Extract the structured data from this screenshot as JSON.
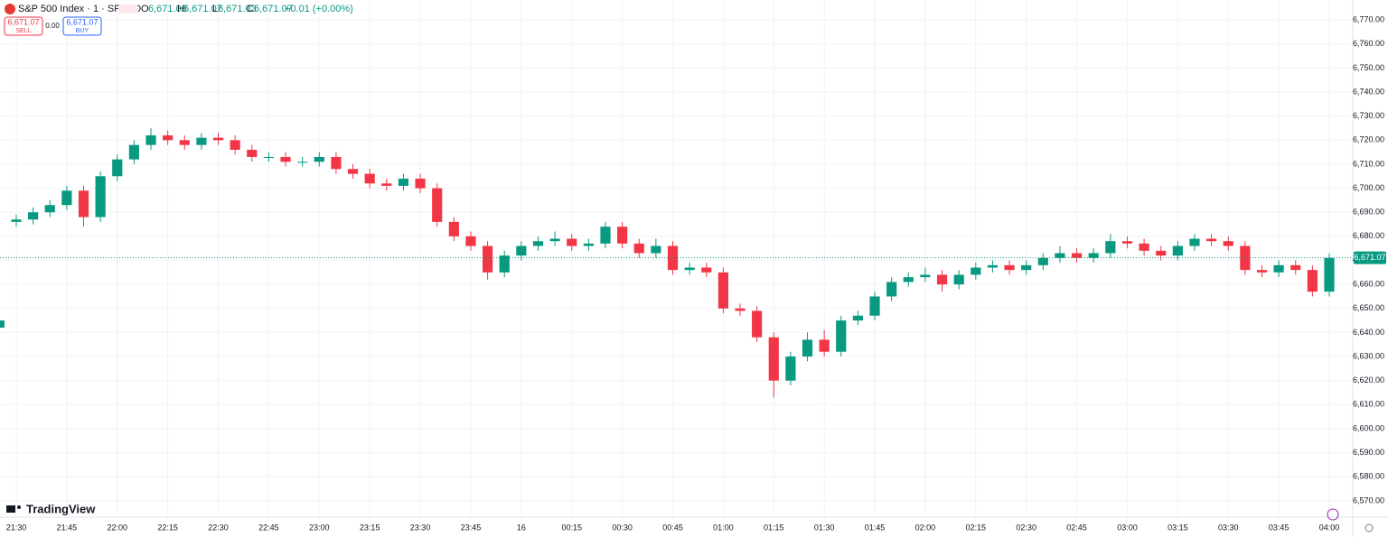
{
  "header": {
    "symbol": "S&P 500 Index · 1 · SPCFD",
    "ohlc": [
      {
        "key": "O",
        "value": "6,671.03"
      },
      {
        "key": "H",
        "value": "6,671.07"
      },
      {
        "key": "L",
        "value": "6,671.03"
      },
      {
        "key": "C",
        "value": "6,671.07"
      }
    ],
    "change": "+0.01 (+0.00%)"
  },
  "trade": {
    "sell_price": "6,671.07",
    "sell_label": "SELL",
    "spread": "0.00",
    "buy_price": "6,671.07",
    "buy_label": "BUY"
  },
  "brand": "TradingView",
  "chart_data": {
    "type": "candlestick",
    "up_color": "#089981",
    "down_color": "#f23645",
    "grid": true,
    "last_price": {
      "value": 6671.07,
      "label": "6,671.07"
    },
    "x": [
      "21:25",
      "21:30",
      "21:35",
      "21:40",
      "21:45",
      "21:50",
      "21:55",
      "22:00",
      "22:05",
      "22:10",
      "22:15",
      "22:20",
      "22:25",
      "22:30",
      "22:35",
      "22:40",
      "22:45",
      "22:50",
      "22:55",
      "23:00",
      "23:05",
      "23:10",
      "23:15",
      "23:20",
      "23:25",
      "23:30",
      "23:35",
      "23:40",
      "23:45",
      "23:50",
      "23:55",
      "00:00",
      "00:05",
      "00:10",
      "00:15",
      "00:20",
      "00:25",
      "00:30",
      "00:35",
      "00:40",
      "00:45",
      "00:50",
      "00:55",
      "01:00",
      "01:05",
      "01:10",
      "01:15",
      "01:20",
      "01:25",
      "01:30",
      "01:35",
      "01:40",
      "01:45",
      "01:50",
      "01:55",
      "02:00",
      "02:05",
      "02:10",
      "02:15",
      "02:20",
      "02:25",
      "02:30",
      "02:35",
      "02:40",
      "02:45",
      "02:50",
      "02:55",
      "03:00",
      "03:05",
      "03:10",
      "03:15",
      "03:20",
      "03:25",
      "03:30",
      "03:35",
      "03:40",
      "03:45",
      "03:50",
      "03:55",
      "04:00"
    ],
    "open": [
      6642,
      6686,
      6687,
      6690,
      6693,
      6699,
      6688,
      6705,
      6712,
      6718,
      6722,
      6720,
      6718,
      6721,
      6720,
      6716,
      6713,
      6713,
      6711,
      6711,
      6713,
      6708,
      6706,
      6702,
      6701,
      6704,
      6700,
      6686,
      6680,
      6676,
      6665,
      6672,
      6676,
      6678,
      6679,
      6676,
      6677,
      6684,
      6677,
      6673,
      6676,
      6666,
      6667,
      6665,
      6650,
      6649,
      6638,
      6620,
      6630,
      6637,
      6632,
      6645,
      6647,
      6655,
      6661,
      6663,
      6664,
      6660,
      6664,
      6667,
      6668,
      6666,
      6668,
      6671,
      6673,
      6671,
      6673,
      6678,
      6677,
      6674,
      6672,
      6676,
      6679,
      6678,
      6676,
      6666,
      6665,
      6668,
      6666,
      6657
    ],
    "high": [
      6647,
      6689,
      6692,
      6695,
      6701,
      6701,
      6707,
      6714,
      6720,
      6725,
      6724,
      6722,
      6723,
      6723,
      6722,
      6718,
      6715,
      6715,
      6713,
      6715,
      6715,
      6710,
      6708,
      6704,
      6706,
      6706,
      6702,
      6688,
      6682,
      6678,
      6674,
      6678,
      6680,
      6682,
      6681,
      6679,
      6686,
      6686,
      6679,
      6679,
      6678,
      6669,
      6669,
      6667,
      6652,
      6651,
      6640,
      6632,
      6640,
      6641,
      6647,
      6649,
      6657,
      6663,
      6665,
      6667,
      6666,
      6666,
      6669,
      6670,
      6670,
      6670,
      6673,
      6676,
      6675,
      6675,
      6681,
      6680,
      6679,
      6676,
      6678,
      6681,
      6681,
      6680,
      6678,
      6668,
      6670,
      6670,
      6668,
      6673
    ],
    "low": [
      6640,
      6684,
      6685,
      6688,
      6691,
      6684,
      6686,
      6703,
      6710,
      6716,
      6718,
      6716,
      6716,
      6718,
      6714,
      6711,
      6711,
      6709,
      6709,
      6709,
      6706,
      6704,
      6700,
      6699,
      6699,
      6698,
      6684,
      6678,
      6674,
      6662,
      6663,
      6670,
      6674,
      6676,
      6674,
      6674,
      6675,
      6675,
      6671,
      6671,
      6664,
      6664,
      6663,
      6648,
      6647,
      6636,
      6613,
      6618,
      6628,
      6630,
      6630,
      6643,
      6645,
      6653,
      6659,
      6661,
      6657,
      6658,
      6662,
      6665,
      6664,
      6664,
      6666,
      6669,
      6669,
      6669,
      6671,
      6675,
      6672,
      6670,
      6670,
      6674,
      6676,
      6674,
      6664,
      6663,
      6663,
      6664,
      6655,
      6655
    ],
    "close": [
      6645,
      6687,
      6690,
      6693,
      6699,
      6688,
      6705,
      6712,
      6718,
      6722,
      6720,
      6718,
      6721,
      6720,
      6716,
      6713,
      6713,
      6711,
      6711,
      6713,
      6708,
      6706,
      6702,
      6701,
      6704,
      6700,
      6686,
      6680,
      6676,
      6665,
      6672,
      6676,
      6678,
      6679,
      6676,
      6677,
      6684,
      6677,
      6673,
      6676,
      6666,
      6667,
      6665,
      6650,
      6649,
      6638,
      6620,
      6630,
      6637,
      6632,
      6645,
      6647,
      6655,
      6661,
      6663,
      6664,
      6660,
      6664,
      6667,
      6668,
      6666,
      6668,
      6671,
      6673,
      6671,
      6673,
      6678,
      6677,
      6674,
      6672,
      6676,
      6679,
      6678,
      6676,
      6666,
      6665,
      6668,
      6666,
      6657,
      6671
    ],
    "ylim": [
      6563.2,
      6778.3
    ],
    "yticks": [
      {
        "value": 6570,
        "label": "6,570.00"
      },
      {
        "value": 6580,
        "label": "6,580.00"
      },
      {
        "value": 6590,
        "label": "6,590.00"
      },
      {
        "value": 6600,
        "label": "6,600.00"
      },
      {
        "value": 6610,
        "label": "6,610.00"
      },
      {
        "value": 6620,
        "label": "6,620.00"
      },
      {
        "value": 6630,
        "label": "6,630.00"
      },
      {
        "value": 6640,
        "label": "6,640.00"
      },
      {
        "value": 6650,
        "label": "6,650.00"
      },
      {
        "value": 6660,
        "label": "6,660.00"
      },
      {
        "value": 6670,
        "label": "6,670.00"
      },
      {
        "value": 6680,
        "label": "6,680.00"
      },
      {
        "value": 6690,
        "label": "6,690.00"
      },
      {
        "value": 6700,
        "label": "6,700.00"
      },
      {
        "value": 6710,
        "label": "6,710.00"
      },
      {
        "value": 6720,
        "label": "6,720.00"
      },
      {
        "value": 6730,
        "label": "6,730.00"
      },
      {
        "value": 6740,
        "label": "6,740.00"
      },
      {
        "value": 6750,
        "label": "6,750.00"
      },
      {
        "value": 6760,
        "label": "6,760.00"
      },
      {
        "value": 6770,
        "label": "6,770.00"
      }
    ],
    "xticks": [
      "21:30",
      "21:45",
      "22:00",
      "22:15",
      "22:30",
      "22:45",
      "23:00",
      "23:15",
      "23:30",
      "23:45",
      "16",
      "00:15",
      "00:30",
      "00:45",
      "01:00",
      "01:15",
      "01:30",
      "01:45",
      "02:00",
      "02:15",
      "02:30",
      "02:45",
      "03:00",
      "03:15",
      "03:30",
      "03:45",
      "04:00"
    ]
  }
}
